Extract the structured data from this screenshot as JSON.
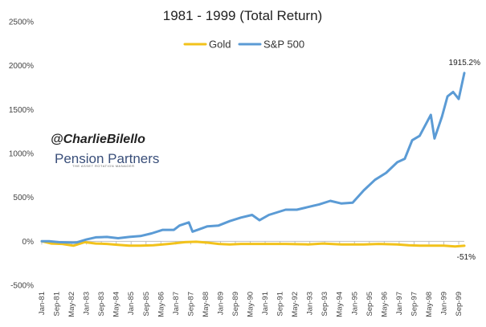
{
  "chart_data": {
    "type": "line",
    "title": "1981 - 1999 (Total Return)",
    "y_ticks": [
      "2500%",
      "2000%",
      "1500%",
      "1000%",
      "500%",
      "0%",
      "-500%"
    ],
    "y_tick_values": [
      2500,
      2000,
      1500,
      1000,
      500,
      0,
      -500
    ],
    "ylim": [
      -500,
      2500
    ],
    "x_ticks": [
      "Jan-81",
      "Sep-81",
      "May-82",
      "Jan-83",
      "Sep-83",
      "May-84",
      "Jan-85",
      "Sep-85",
      "May-86",
      "Jan-87",
      "Sep-87",
      "May-88",
      "Jan-89",
      "Sep-89",
      "May-90",
      "Jan-91",
      "Sep-91",
      "May-92",
      "Jan-93",
      "Sep-93",
      "May-94",
      "Jan-95",
      "Sep-95",
      "May-96",
      "Jan-97",
      "Sep-97",
      "May-98",
      "Jan-99",
      "Sep-99"
    ],
    "x_range": [
      "1981-01",
      "1999-12"
    ],
    "legend_position": "top-center",
    "grid": false,
    "series": [
      {
        "name": "Gold",
        "color": "#f2c21b",
        "points": [
          [
            "1981-01",
            0
          ],
          [
            "1981-06",
            -25
          ],
          [
            "1981-12",
            -30
          ],
          [
            "1982-06",
            -50
          ],
          [
            "1982-12",
            -10
          ],
          [
            "1983-06",
            -25
          ],
          [
            "1983-12",
            -30
          ],
          [
            "1984-06",
            -40
          ],
          [
            "1984-12",
            -50
          ],
          [
            "1985-06",
            -50
          ],
          [
            "1986-01",
            -45
          ],
          [
            "1986-09",
            -30
          ],
          [
            "1987-06",
            -10
          ],
          [
            "1987-12",
            -5
          ],
          [
            "1988-06",
            -15
          ],
          [
            "1988-12",
            -30
          ],
          [
            "1989-06",
            -35
          ],
          [
            "1989-12",
            -30
          ],
          [
            "1990-06",
            -30
          ],
          [
            "1991-01",
            -30
          ],
          [
            "1991-12",
            -30
          ],
          [
            "1992-12",
            -35
          ],
          [
            "1993-08",
            -25
          ],
          [
            "1994-06",
            -35
          ],
          [
            "1995-06",
            -35
          ],
          [
            "1996-02",
            -30
          ],
          [
            "1996-12",
            -35
          ],
          [
            "1997-06",
            -45
          ],
          [
            "1997-12",
            -50
          ],
          [
            "1998-06",
            -50
          ],
          [
            "1999-01",
            -50
          ],
          [
            "1999-07",
            -58
          ],
          [
            "1999-12",
            -51
          ]
        ]
      },
      {
        "name": "S&P 500",
        "color": "#5b9bd5",
        "points": [
          [
            "1981-01",
            0
          ],
          [
            "1981-05",
            0
          ],
          [
            "1981-10",
            -10
          ],
          [
            "1982-06",
            -15
          ],
          [
            "1982-08",
            -12
          ],
          [
            "1983-01",
            20
          ],
          [
            "1983-06",
            45
          ],
          [
            "1983-12",
            50
          ],
          [
            "1984-06",
            35
          ],
          [
            "1984-12",
            50
          ],
          [
            "1985-06",
            60
          ],
          [
            "1985-12",
            90
          ],
          [
            "1986-06",
            130
          ],
          [
            "1986-12",
            130
          ],
          [
            "1987-03",
            180
          ],
          [
            "1987-08",
            215
          ],
          [
            "1987-10",
            110
          ],
          [
            "1987-12",
            125
          ],
          [
            "1988-06",
            170
          ],
          [
            "1988-12",
            180
          ],
          [
            "1989-06",
            230
          ],
          [
            "1989-12",
            270
          ],
          [
            "1990-06",
            300
          ],
          [
            "1990-10",
            240
          ],
          [
            "1991-03",
            300
          ],
          [
            "1991-12",
            360
          ],
          [
            "1992-06",
            360
          ],
          [
            "1992-12",
            390
          ],
          [
            "1993-06",
            420
          ],
          [
            "1993-12",
            460
          ],
          [
            "1994-06",
            430
          ],
          [
            "1994-12",
            440
          ],
          [
            "1995-06",
            580
          ],
          [
            "1995-12",
            700
          ],
          [
            "1996-06",
            780
          ],
          [
            "1996-12",
            900
          ],
          [
            "1997-04",
            940
          ],
          [
            "1997-08",
            1150
          ],
          [
            "1997-12",
            1200
          ],
          [
            "1998-06",
            1440
          ],
          [
            "1998-08",
            1170
          ],
          [
            "1998-12",
            1420
          ],
          [
            "1999-03",
            1650
          ],
          [
            "1999-06",
            1700
          ],
          [
            "1999-09",
            1620
          ],
          [
            "1999-12",
            1915.2
          ]
        ]
      }
    ],
    "annotations": [
      {
        "text": "1915.2%",
        "series": "S&P 500",
        "at": "1999-12"
      },
      {
        "text": "-51%",
        "series": "Gold",
        "at": "1999-12"
      }
    ]
  },
  "watermark": {
    "handle": "@CharlieBilello",
    "brand": "Pension Partners",
    "tagline": "THE ASSET ROTATION MANAGER"
  }
}
